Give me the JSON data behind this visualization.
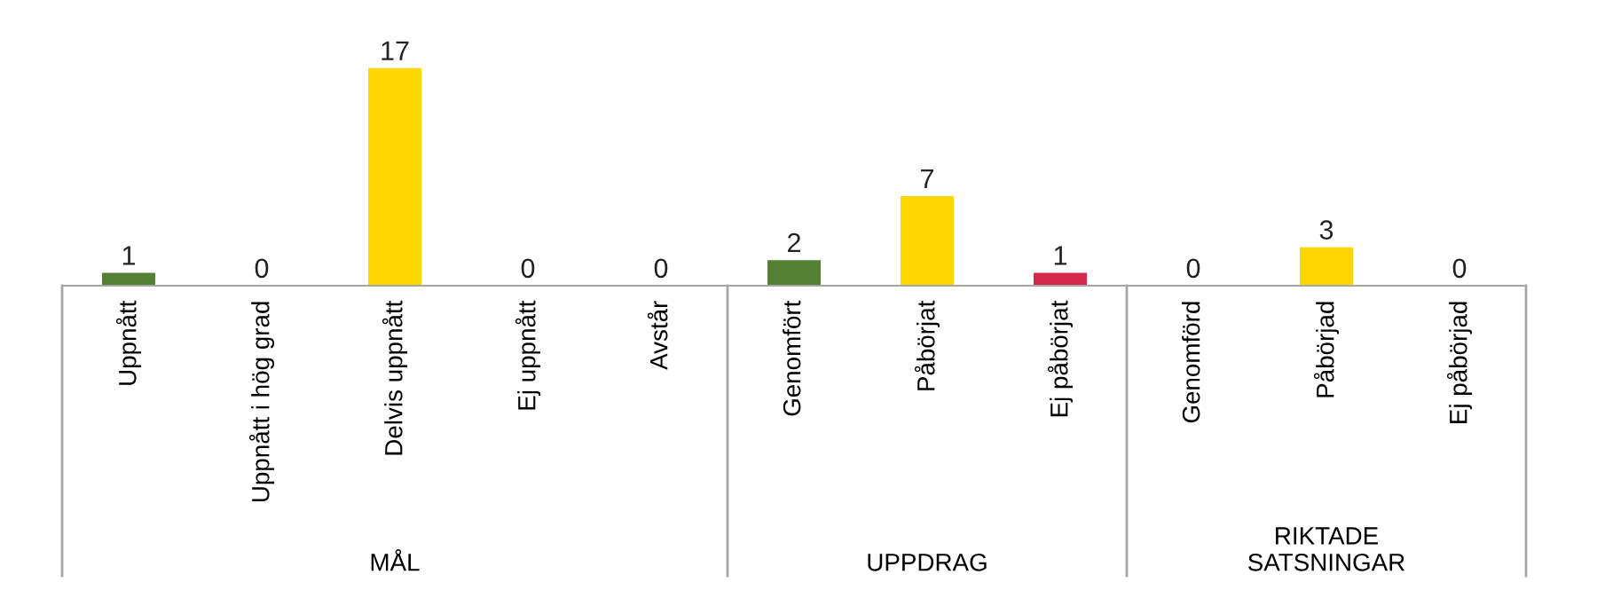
{
  "chart_data": {
    "type": "bar",
    "categories": [
      "Uppnått",
      "Uppnått i hög grad",
      "Delvis uppnått",
      "Ej uppnått",
      "Avstår",
      "Genomfört",
      "Påbörjat",
      "Ej påbörjat",
      "Genomförd",
      "Påbörjad",
      "Ej påbörjad"
    ],
    "values": [
      1,
      0,
      17,
      0,
      0,
      2,
      7,
      1,
      0,
      3,
      0
    ],
    "colors": [
      "#548235",
      "#92d050",
      "#ffd700",
      "#d6284b",
      "#a6a6a6",
      "#548235",
      "#ffd700",
      "#d6284b",
      "#548235",
      "#ffd700",
      "#d6284b"
    ],
    "data_labels": true,
    "tick_labels": "x",
    "grid": false,
    "annotations": [
      "MÅL",
      "UPPDRAG",
      "RIKTADE\nSATSNINGAR"
    ]
  }
}
